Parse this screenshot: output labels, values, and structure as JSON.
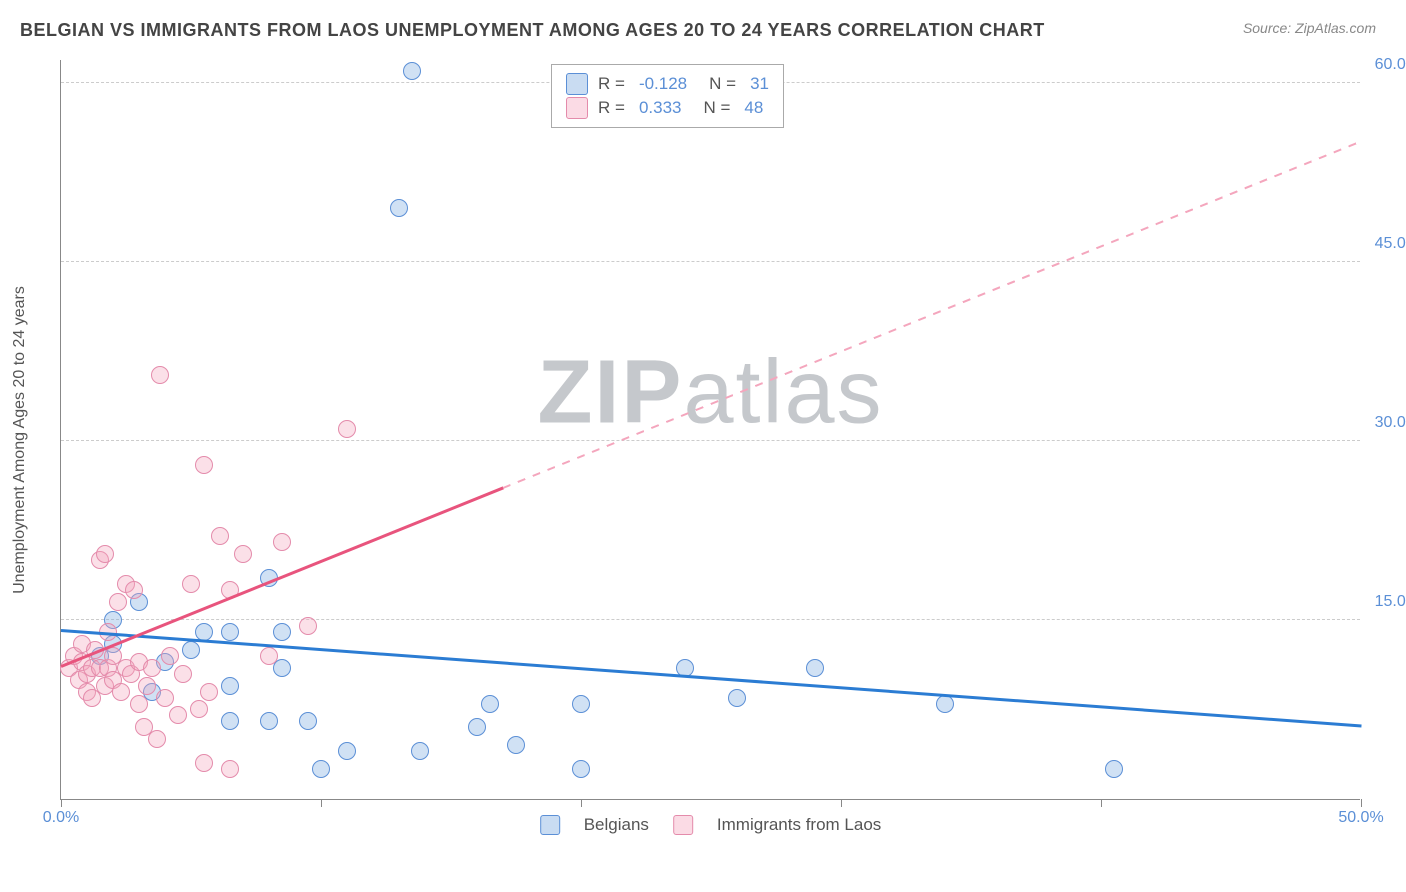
{
  "title": "BELGIAN VS IMMIGRANTS FROM LAOS UNEMPLOYMENT AMONG AGES 20 TO 24 YEARS CORRELATION CHART",
  "source": "Source: ZipAtlas.com",
  "y_axis_label": "Unemployment Among Ages 20 to 24 years",
  "watermark": "ZIPatlas",
  "chart": {
    "type": "scatter",
    "xlim": [
      0,
      50
    ],
    "ylim": [
      0,
      62
    ],
    "x_ticks": [
      0,
      10,
      20,
      30,
      40,
      50
    ],
    "x_tick_labels": [
      "0.0%",
      "",
      "",
      "",
      "",
      "50.0%"
    ],
    "y_ticks": [
      15,
      30,
      45,
      60
    ],
    "y_tick_labels": [
      "15.0%",
      "30.0%",
      "45.0%",
      "60.0%"
    ],
    "grid_color": "#cccccc",
    "background_color": "#ffffff",
    "axis_color": "#888888",
    "tick_label_color": "#5b8fd6",
    "series": [
      {
        "name": "Belgians",
        "color_fill": "rgba(119,168,223,0.35)",
        "color_stroke": "#5b8fd6",
        "marker_radius": 9,
        "R": "-0.128",
        "N": "31",
        "trend": {
          "x1": 0,
          "y1": 14.0,
          "x2": 50,
          "y2": 6.0,
          "solid_until_x": 50,
          "color": "#2b7cd3",
          "width": 2.5
        },
        "points": [
          [
            13.5,
            61.0
          ],
          [
            13.0,
            49.5
          ],
          [
            8.0,
            18.5
          ],
          [
            6.5,
            14.0
          ],
          [
            5.5,
            14.0
          ],
          [
            8.5,
            14.0
          ],
          [
            3.0,
            16.5
          ],
          [
            5.0,
            12.5
          ],
          [
            4.0,
            11.5
          ],
          [
            1.5,
            12.0
          ],
          [
            2.0,
            13.0
          ],
          [
            6.5,
            6.5
          ],
          [
            8.0,
            6.5
          ],
          [
            9.5,
            6.5
          ],
          [
            11.0,
            4.0
          ],
          [
            6.5,
            9.5
          ],
          [
            8.5,
            11.0
          ],
          [
            10.0,
            2.5
          ],
          [
            13.8,
            4.0
          ],
          [
            16.5,
            8.0
          ],
          [
            17.5,
            4.5
          ],
          [
            20.0,
            2.5
          ],
          [
            20.0,
            8.0
          ],
          [
            26.0,
            8.5
          ],
          [
            34.0,
            8.0
          ],
          [
            40.5,
            2.5
          ],
          [
            29.0,
            11.0
          ],
          [
            24.0,
            11.0
          ],
          [
            16.0,
            6.0
          ],
          [
            3.5,
            9.0
          ],
          [
            2.0,
            15.0
          ]
        ]
      },
      {
        "name": "Immigrants from Laos",
        "color_fill": "rgba(244,166,189,0.35)",
        "color_stroke": "#e48bab",
        "marker_radius": 9,
        "R": "0.333",
        "N": "48",
        "trend": {
          "x1": 0,
          "y1": 11.0,
          "x2": 50,
          "y2": 55.0,
          "solid_until_x": 17,
          "color_solid": "#e8547d",
          "color_dash": "#f4a6bd",
          "width": 2.5
        },
        "points": [
          [
            0.3,
            11.0
          ],
          [
            0.5,
            12.0
          ],
          [
            0.7,
            10.0
          ],
          [
            0.8,
            11.5
          ],
          [
            0.8,
            13.0
          ],
          [
            1.0,
            9.0
          ],
          [
            1.0,
            10.5
          ],
          [
            1.2,
            8.5
          ],
          [
            1.2,
            11.0
          ],
          [
            1.3,
            12.5
          ],
          [
            1.5,
            11.0
          ],
          [
            1.5,
            20.0
          ],
          [
            1.7,
            9.5
          ],
          [
            1.8,
            11.0
          ],
          [
            1.8,
            14.0
          ],
          [
            1.7,
            20.5
          ],
          [
            2.0,
            10.0
          ],
          [
            2.0,
            12.0
          ],
          [
            2.2,
            16.5
          ],
          [
            2.3,
            9.0
          ],
          [
            2.5,
            11.0
          ],
          [
            2.5,
            18.0
          ],
          [
            2.7,
            10.5
          ],
          [
            2.8,
            17.5
          ],
          [
            3.0,
            8.0
          ],
          [
            3.0,
            11.5
          ],
          [
            3.2,
            6.0
          ],
          [
            3.3,
            9.5
          ],
          [
            3.5,
            11.0
          ],
          [
            3.7,
            5.0
          ],
          [
            3.8,
            35.5
          ],
          [
            4.0,
            8.5
          ],
          [
            4.2,
            12.0
          ],
          [
            4.5,
            7.0
          ],
          [
            4.7,
            10.5
          ],
          [
            5.0,
            18.0
          ],
          [
            5.3,
            7.5
          ],
          [
            5.5,
            28.0
          ],
          [
            5.7,
            9.0
          ],
          [
            6.1,
            22.0
          ],
          [
            6.5,
            17.5
          ],
          [
            7.0,
            20.5
          ],
          [
            8.0,
            12.0
          ],
          [
            8.5,
            21.5
          ],
          [
            9.5,
            14.5
          ],
          [
            11.0,
            31.0
          ],
          [
            6.5,
            2.5
          ],
          [
            5.5,
            3.0
          ]
        ]
      }
    ],
    "stats_legend": [
      {
        "swatch": "blue",
        "R": "-0.128",
        "N": "31"
      },
      {
        "swatch": "pink",
        "R": "0.333",
        "N": "48"
      }
    ],
    "bottom_legend": [
      {
        "swatch": "blue",
        "label": "Belgians"
      },
      {
        "swatch": "pink",
        "label": "Immigrants from Laos"
      }
    ]
  }
}
